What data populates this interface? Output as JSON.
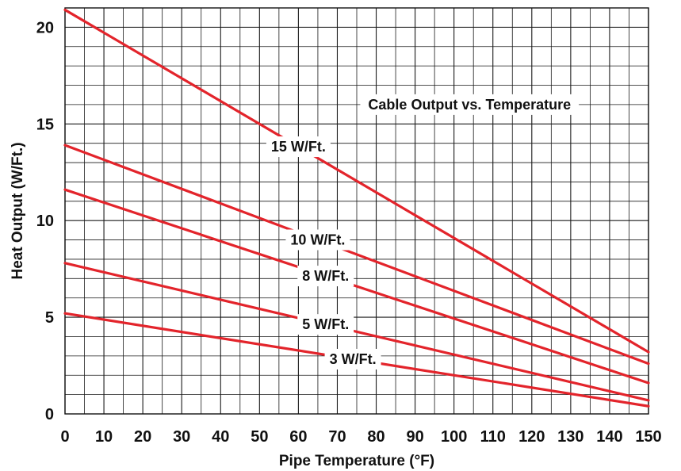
{
  "chart_data": {
    "type": "line",
    "title": "Cable Output vs. Temperature",
    "xlabel": "Pipe Temperature (°F)",
    "ylabel": "Heat Output (W/Ft.)",
    "xlim": [
      0,
      150
    ],
    "ylim": [
      0,
      21
    ],
    "x_ticks": [
      0,
      10,
      20,
      30,
      40,
      50,
      60,
      70,
      80,
      90,
      100,
      110,
      120,
      130,
      140,
      150
    ],
    "y_ticks": [
      0,
      5,
      10,
      15,
      20
    ],
    "grid": true,
    "line_color": "#e3242b",
    "series": [
      {
        "name": "15 W/Ft.",
        "x": [
          0,
          150
        ],
        "y": [
          20.9,
          3.2
        ]
      },
      {
        "name": "10 W/Ft.",
        "x": [
          0,
          150
        ],
        "y": [
          13.9,
          2.6
        ]
      },
      {
        "name": "8 W/Ft.",
        "x": [
          0,
          150
        ],
        "y": [
          11.6,
          1.6
        ]
      },
      {
        "name": "5 W/Ft.",
        "x": [
          0,
          150
        ],
        "y": [
          7.8,
          0.7
        ]
      },
      {
        "name": "3 W/Ft.",
        "x": [
          0,
          150
        ],
        "y": [
          5.2,
          0.4
        ]
      }
    ]
  }
}
